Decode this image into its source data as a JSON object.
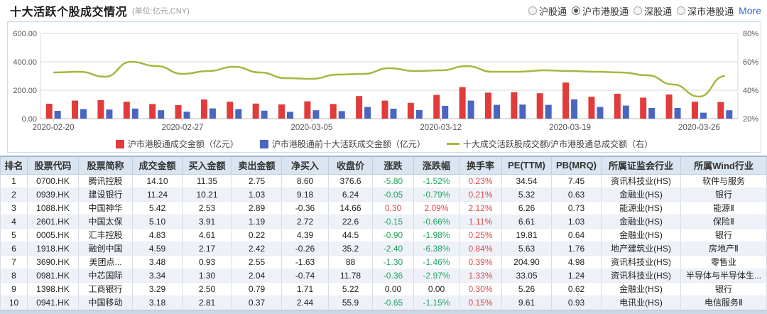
{
  "header": {
    "title": "十大活跃个股成交情况",
    "subtitle": "(单位:亿元,CNY)",
    "filters": [
      {
        "label": "沪股通",
        "selected": false
      },
      {
        "label": "沪市港股通",
        "selected": true
      },
      {
        "label": "深股通",
        "selected": false
      },
      {
        "label": "深市港股通",
        "selected": false
      }
    ],
    "more_label": "More"
  },
  "chart_data": {
    "type": "bar",
    "x": [
      "2020-02-20",
      "2020-02-21",
      "2020-02-24",
      "2020-02-25",
      "2020-02-26",
      "2020-02-27",
      "2020-02-28",
      "2020-03-02",
      "2020-03-03",
      "2020-03-04",
      "2020-03-05",
      "2020-03-06",
      "2020-03-09",
      "2020-03-10",
      "2020-03-11",
      "2020-03-12",
      "2020-03-13",
      "2020-03-16",
      "2020-03-17",
      "2020-03-18",
      "2020-03-19",
      "2020-03-20",
      "2020-03-23",
      "2020-03-24",
      "2020-03-25",
      "2020-03-26",
      "2020-03-27"
    ],
    "x_tick_indices": [
      0,
      5,
      10,
      15,
      20,
      25
    ],
    "series": [
      {
        "name": "沪市港股通成交金额（亿元）",
        "type": "bar",
        "axis": "left",
        "color": "#e23b3b",
        "values": [
          105,
          127,
          130,
          119,
          103,
          95,
          135,
          119,
          106,
          100,
          122,
          103,
          159,
          127,
          111,
          167,
          222,
          183,
          186,
          179,
          254,
          154,
          175,
          148,
          170,
          119,
          117
        ]
      },
      {
        "name": "沪市港股通前十大活跃成交金额（亿元）",
        "type": "bar",
        "axis": "left",
        "color": "#4a66c0",
        "values": [
          55,
          67,
          64,
          71,
          59,
          49,
          72,
          67,
          56,
          48,
          59,
          53,
          82,
          70,
          60,
          90,
          127,
          97,
          99,
          97,
          136,
          82,
          92,
          75,
          75,
          42,
          59
        ]
      },
      {
        "name": "十大成交活跃股成交额/沪市港股通总成交额（右）",
        "type": "line",
        "axis": "right",
        "color": "#a2b83e",
        "values": [
          52.5,
          53,
          49.5,
          60,
          57,
          51.5,
          53.5,
          56.5,
          52.5,
          48.5,
          48,
          51,
          51.5,
          55.5,
          53.5,
          54,
          57,
          53,
          53,
          54,
          53.5,
          53,
          52.5,
          50.5,
          44,
          35.5,
          50
        ]
      }
    ],
    "left_axis": {
      "ticks": [
        "600.00",
        "400.00",
        "200.00",
        "0.00"
      ],
      "min": 0,
      "max": 600,
      "grid": true
    },
    "right_axis": {
      "ticks": [
        "80%",
        "60%",
        "40%",
        "20%"
      ],
      "min": 20,
      "max": 80
    },
    "legend_position": "bottom"
  },
  "table": {
    "columns": [
      "排名",
      "股票代码",
      "股票简称",
      "成交金额",
      "买入金额",
      "卖出金额",
      "净买入",
      "收盘价",
      "涨跌",
      "涨跌幅",
      "换手率",
      "PE(TTM)",
      "PB(MRQ)",
      "所属证监会行业",
      "所属Wind行业"
    ],
    "rows": [
      [
        "1",
        "0700.HK",
        "腾讯控股",
        "14.10",
        "11.35",
        "2.75",
        "8.60",
        "376.6",
        "-5.80",
        "-1.52%",
        "0.23%",
        "34.54",
        "7.45",
        "资讯科技业(HS)",
        "软件与服务"
      ],
      [
        "2",
        "0939.HK",
        "建设银行",
        "11.24",
        "10.21",
        "1.03",
        "9.18",
        "6.24",
        "-0.05",
        "-0.79%",
        "0.21%",
        "5.32",
        "0.63",
        "金融业(HS)",
        "银行"
      ],
      [
        "3",
        "1088.HK",
        "中国神华",
        "5.42",
        "2.53",
        "2.89",
        "-0.36",
        "14.66",
        "0.30",
        "2.09%",
        "2.12%",
        "6.26",
        "0.73",
        "能源业(HS)",
        "能源Ⅱ"
      ],
      [
        "4",
        "2601.HK",
        "中国太保",
        "5.10",
        "3.91",
        "1.19",
        "2.72",
        "22.6",
        "-0.15",
        "-0.66%",
        "1.11%",
        "6.61",
        "1.03",
        "金融业(HS)",
        "保险Ⅱ"
      ],
      [
        "5",
        "0005.HK",
        "汇丰控股",
        "4.83",
        "4.61",
        "0.22",
        "4.39",
        "44.5",
        "-0.90",
        "-1.98%",
        "0.25%",
        "19.81",
        "0.64",
        "金融业(HS)",
        "银行"
      ],
      [
        "6",
        "1918.HK",
        "融创中国",
        "4.59",
        "2.17",
        "2.42",
        "-0.26",
        "35.2",
        "-2.40",
        "-6.38%",
        "0.84%",
        "5.63",
        "1.76",
        "地产建筑业(HS)",
        "房地产Ⅱ"
      ],
      [
        "7",
        "3690.HK",
        "美团点...",
        "3.48",
        "0.93",
        "2.55",
        "-1.63",
        "88",
        "-1.30",
        "-1.46%",
        "0.39%",
        "204.90",
        "4.98",
        "资讯科技业(HS)",
        "零售业"
      ],
      [
        "8",
        "0981.HK",
        "中芯国际",
        "3.34",
        "1.30",
        "2.04",
        "-0.74",
        "11.78",
        "-0.36",
        "-2.97%",
        "1.33%",
        "33.05",
        "1.24",
        "资讯科技业(HS)",
        "半导体与半导体生..."
      ],
      [
        "9",
        "1398.HK",
        "工商银行",
        "3.29",
        "2.50",
        "0.79",
        "1.71",
        "5.22",
        "0.00",
        "0.00",
        "0.30%",
        "5.26",
        "0.62",
        "金融业(HS)",
        "银行"
      ],
      [
        "10",
        "0941.HK",
        "中国移动",
        "3.18",
        "2.81",
        "0.37",
        "2.44",
        "55.9",
        "-0.65",
        "-1.15%",
        "0.15%",
        "9.61",
        "0.93",
        "电讯业(HS)",
        "电信服务Ⅱ"
      ]
    ]
  },
  "colors": {
    "up_red": "#e14848",
    "down_green": "#21a35f",
    "bar_red": "#e23b3b",
    "bar_blue": "#4a66c0",
    "ratio_line": "#a2b83e",
    "header_bg": "#dbe5f1"
  }
}
